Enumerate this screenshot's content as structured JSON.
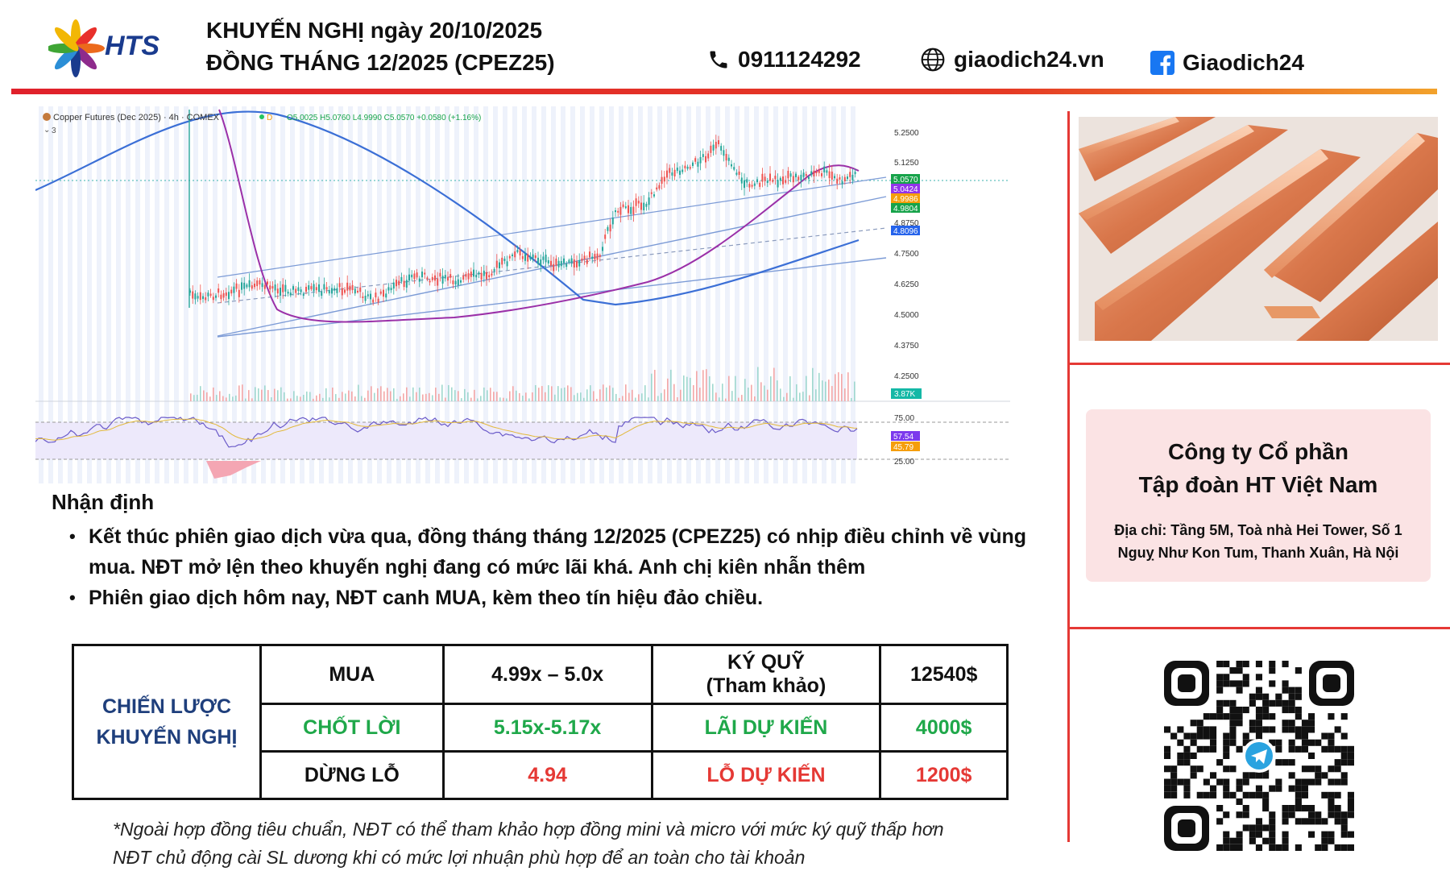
{
  "header": {
    "logo_text": "HTS",
    "title_line1": "KHUYẾN NGHỊ ngày 20/10/2025",
    "title_line2": "ĐỒNG THÁNG 12/2025 (CPEZ25)",
    "phone": "0911124292",
    "website": "giaodich24.vn",
    "facebook": "Giaodich24"
  },
  "chart": {
    "symbol_title": "Copper Futures (Dec 2025) · 4h · COMEX",
    "ohlc": "O5.0025 H5.0760 L4.9990 C5.0570 +0.0580 (+1.16%)",
    "indicator_count": "3",
    "price_ticks": [
      "5.2500",
      "5.1250",
      "4.8750",
      "4.7500",
      "4.6250",
      "4.5000",
      "4.3750",
      "4.2500"
    ],
    "price_tags": [
      {
        "label": "5.0570",
        "color": "#16a34a"
      },
      {
        "label": "5.0424",
        "color": "#9333ea"
      },
      {
        "label": "4.9986",
        "color": "#f59e0b"
      },
      {
        "label": "4.9804",
        "color": "#16a34a"
      },
      {
        "label": "4.8096",
        "color": "#2563eb"
      }
    ],
    "volume_tag": "3.87K",
    "rsi_ticks": [
      "75.00",
      "25.00"
    ],
    "rsi_tags": [
      {
        "label": "57.54",
        "color": "#7c3aed"
      },
      {
        "label": "45.79",
        "color": "#f59e0b"
      }
    ]
  },
  "analysis": {
    "heading": "Nhận định",
    "bullets": [
      "Kết thúc phiên giao dịch vừa qua, đồng tháng tháng 12/2025 (CPEZ25) có nhịp điều chỉnh về vùng mua. NĐT mở lện theo khuyến nghị đang có mức lãi khá. Anh chị kiên nhẫn thêm",
      "Phiên giao dịch hôm nay, NĐT canh MUA, kèm theo tín hiệu đảo chiều."
    ]
  },
  "strategy": {
    "label_line1": "CHIẾN LƯỢC",
    "label_line2": "KHUYẾN NGHỊ",
    "rows": [
      {
        "action": "MUA",
        "value": "4.99x – 5.0x",
        "key": "KÝ QUỸ",
        "key_sub": "(Tham khảo)",
        "amount": "12540$"
      },
      {
        "action": "CHỐT LỜI",
        "value": "5.15x-5.17x",
        "key": "LÃI DỰ KIẾN",
        "key_sub": "",
        "amount": "4000$"
      },
      {
        "action": "DỪNG LỖ",
        "value": "4.94",
        "key": "LỖ DỰ KIẾN",
        "key_sub": "",
        "amount": "1200$"
      }
    ]
  },
  "footnote": {
    "line1": "*Ngoài hợp đồng tiêu chuẩn, NĐT có thể tham khảo hợp đồng mini và micro với mức ký quỹ thấp hơn",
    "line2": "NĐT chủ động cài SL dương khi có mức lợi nhuận phù hợp để an toàn cho tài khoản"
  },
  "company": {
    "name_line1": "Công ty Cổ phần",
    "name_line2": "Tập đoàn HT Việt Nam",
    "address_line1": "Địa chỉ: Tầng 5M, Toà nhà Hei Tower, Số 1",
    "address_line2": "Nguỵ Như Kon Tum, Thanh Xuân, Hà Nội"
  }
}
